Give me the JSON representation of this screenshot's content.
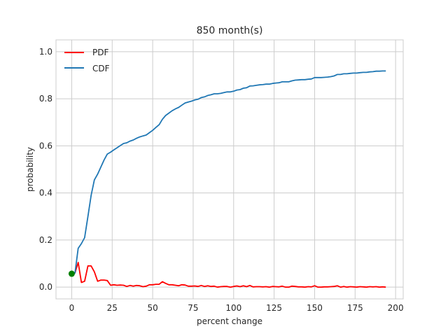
{
  "chart_data": {
    "type": "line",
    "title": "850 month(s)",
    "xlabel": "percent change",
    "ylabel": "probability",
    "xlim": [
      -9.7,
      204.7
    ],
    "ylim": [
      -0.05,
      1.05
    ],
    "xticks": [
      0,
      25,
      50,
      75,
      100,
      125,
      150,
      175,
      200
    ],
    "xtick_labels": [
      "0",
      "25",
      "50",
      "75",
      "100",
      "125",
      "150",
      "175",
      "200"
    ],
    "yticks": [
      0.0,
      0.2,
      0.4,
      0.6,
      0.8,
      1.0
    ],
    "ytick_labels": [
      "0.0",
      "0.2",
      "0.4",
      "0.6",
      "0.8",
      "1.0"
    ],
    "grid": true,
    "legend_position": "top-left",
    "series": [
      {
        "name": "PDF",
        "color": "#ff0000",
        "x": [
          0,
          2,
          4,
          6,
          8,
          10,
          12,
          14,
          16,
          18,
          20,
          22,
          24,
          26,
          28,
          30,
          32,
          34,
          36,
          38,
          40,
          42,
          44,
          46,
          48,
          50,
          52,
          54,
          56,
          58,
          60,
          62,
          64,
          66,
          68,
          70,
          72,
          74,
          76,
          78,
          80,
          82,
          84,
          86,
          88,
          90,
          92,
          94,
          96,
          98,
          100,
          102,
          104,
          106,
          108,
          110,
          112,
          114,
          116,
          118,
          120,
          122,
          124,
          126,
          128,
          130,
          132,
          134,
          136,
          138,
          140,
          142,
          144,
          146,
          148,
          150,
          152,
          154,
          156,
          158,
          160,
          162,
          164,
          166,
          168,
          170,
          172,
          174,
          176,
          178,
          180,
          182,
          184,
          186,
          188,
          190,
          192,
          194
        ],
        "values": [
          0.057,
          0.06,
          0.105,
          0.02,
          0.025,
          0.09,
          0.09,
          0.065,
          0.025,
          0.03,
          0.03,
          0.028,
          0.008,
          0.01,
          0.008,
          0.009,
          0.008,
          0.003,
          0.007,
          0.004,
          0.007,
          0.006,
          0.002,
          0.004,
          0.01,
          0.01,
          0.012,
          0.012,
          0.023,
          0.016,
          0.01,
          0.01,
          0.008,
          0.006,
          0.01,
          0.009,
          0.004,
          0.004,
          0.005,
          0.003,
          0.007,
          0.003,
          0.006,
          0.003,
          0.004,
          0.0,
          0.002,
          0.003,
          0.003,
          0.0,
          0.003,
          0.005,
          0.002,
          0.006,
          0.002,
          0.007,
          0.001,
          0.002,
          0.002,
          0.001,
          0.002,
          0.0,
          0.003,
          0.002,
          0.001,
          0.004,
          0.0,
          0.0,
          0.004,
          0.003,
          0.001,
          0.001,
          0.0,
          0.002,
          0.001,
          0.006,
          0.0,
          0.0,
          0.001,
          0.001,
          0.002,
          0.003,
          0.006,
          0.0,
          0.003,
          0.0,
          0.002,
          0.001,
          0.0,
          0.002,
          0.001,
          0.0,
          0.002,
          0.001,
          0.002,
          0.0,
          0.001,
          0.0
        ]
      },
      {
        "name": "CDF",
        "color": "#1f77b4",
        "x": [
          0,
          2,
          4,
          6,
          8,
          10,
          12,
          14,
          16,
          18,
          20,
          22,
          24,
          26,
          28,
          30,
          32,
          34,
          36,
          38,
          40,
          42,
          44,
          46,
          48,
          50,
          52,
          54,
          56,
          58,
          60,
          62,
          64,
          66,
          68,
          70,
          72,
          74,
          76,
          78,
          80,
          82,
          84,
          86,
          88,
          90,
          92,
          94,
          96,
          98,
          100,
          102,
          104,
          106,
          108,
          110,
          112,
          114,
          116,
          118,
          120,
          122,
          124,
          126,
          128,
          130,
          132,
          134,
          136,
          138,
          140,
          142,
          144,
          146,
          148,
          150,
          152,
          154,
          156,
          158,
          160,
          162,
          164,
          166,
          168,
          170,
          172,
          174,
          176,
          178,
          180,
          182,
          184,
          186,
          188,
          190,
          192,
          194
        ],
        "values": [
          0.057,
          0.06,
          0.165,
          0.185,
          0.21,
          0.3,
          0.39,
          0.455,
          0.48,
          0.51,
          0.54,
          0.565,
          0.573,
          0.583,
          0.592,
          0.601,
          0.61,
          0.613,
          0.62,
          0.625,
          0.632,
          0.638,
          0.642,
          0.646,
          0.656,
          0.666,
          0.678,
          0.69,
          0.713,
          0.729,
          0.739,
          0.749,
          0.757,
          0.763,
          0.773,
          0.782,
          0.786,
          0.79,
          0.795,
          0.798,
          0.805,
          0.808,
          0.814,
          0.817,
          0.821,
          0.821,
          0.823,
          0.826,
          0.829,
          0.829,
          0.832,
          0.837,
          0.839,
          0.845,
          0.847,
          0.854,
          0.855,
          0.857,
          0.859,
          0.86,
          0.862,
          0.862,
          0.865,
          0.867,
          0.868,
          0.872,
          0.872,
          0.872,
          0.876,
          0.879,
          0.88,
          0.881,
          0.881,
          0.883,
          0.884,
          0.89,
          0.89,
          0.89,
          0.891,
          0.892,
          0.894,
          0.897,
          0.903,
          0.903,
          0.906,
          0.906,
          0.908,
          0.909,
          0.909,
          0.911,
          0.912,
          0.912,
          0.914,
          0.915,
          0.917,
          0.917,
          0.918,
          0.918
        ]
      }
    ],
    "markers": [
      {
        "x": 0,
        "y": 0.057,
        "color": "#008000"
      }
    ]
  }
}
